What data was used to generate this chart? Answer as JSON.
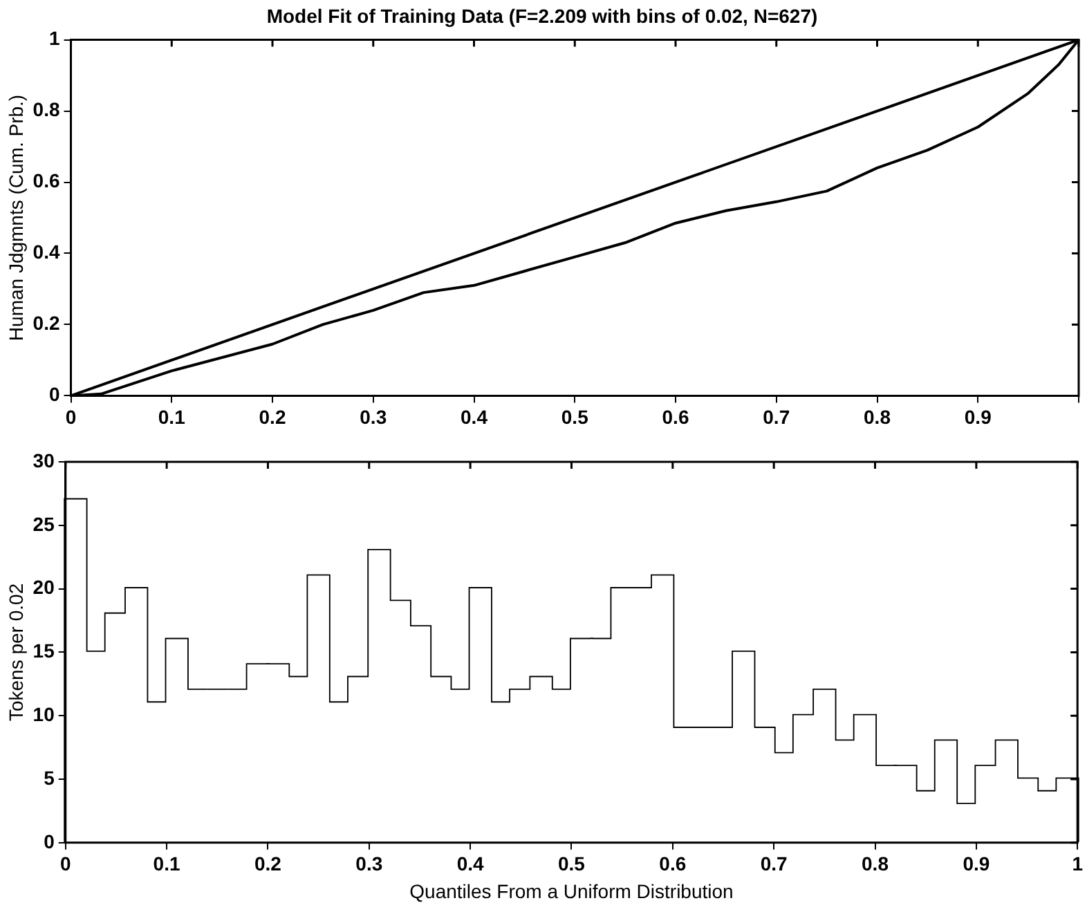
{
  "chart_data": [
    {
      "type": "line",
      "title": "Model Fit of Training Data (F=2.209 with bins of 0.02, N=627)",
      "ylabel": "Human Jdgmnts (Cum. Prb.)",
      "xlim": [
        0,
        1
      ],
      "ylim": [
        0,
        1
      ],
      "xticks": [
        0,
        0.1,
        0.2,
        0.3,
        0.4,
        0.5,
        0.6,
        0.7,
        0.8,
        0.9,
        {
          "value": 1,
          "label": null
        }
      ],
      "yticks": [
        0,
        0.2,
        0.4,
        0.6,
        0.8,
        1
      ],
      "grid": false,
      "legend": false,
      "marker": "none",
      "series": [
        {
          "color": "#000000",
          "x": [
            0,
            1
          ],
          "values": [
            0,
            1
          ]
        },
        {
          "color": "#000000",
          "x": [
            0,
            0.03,
            0.1,
            0.2,
            0.25,
            0.3,
            0.35,
            0.4,
            0.45,
            0.5,
            0.55,
            0.6,
            0.65,
            0.7,
            0.75,
            0.8,
            0.85,
            0.9,
            0.95,
            0.98,
            1
          ],
          "values": [
            0,
            0.005,
            0.07,
            0.145,
            0.2,
            0.24,
            0.29,
            0.31,
            0.35,
            0.39,
            0.43,
            0.485,
            0.52,
            0.545,
            0.575,
            0.64,
            0.69,
            0.755,
            0.85,
            0.93,
            1
          ]
        }
      ]
    },
    {
      "type": "histogram",
      "xlabel": "Quantiles From a Uniform Distribution",
      "ylabel": "Tokens per 0.02",
      "xlim": [
        0,
        1
      ],
      "ylim": [
        0,
        30
      ],
      "xticks": [
        0,
        0.1,
        0.2,
        0.3,
        0.4,
        0.5,
        0.6,
        0.7,
        0.8,
        0.9,
        1
      ],
      "yticks": [
        0,
        5,
        10,
        15,
        20,
        25,
        30
      ],
      "grid": false,
      "legend": false,
      "color": "#ffffff",
      "bins": [
        0,
        0.02,
        0.04,
        0.06,
        0.08,
        0.1,
        0.12,
        0.14,
        0.16,
        0.18,
        0.2,
        0.22,
        0.24,
        0.26,
        0.28,
        0.3,
        0.32,
        0.34,
        0.36,
        0.38,
        0.4,
        0.42,
        0.44,
        0.46,
        0.48,
        0.5,
        0.52,
        0.54,
        0.56,
        0.58,
        0.6,
        0.62,
        0.64,
        0.66,
        0.68,
        0.7,
        0.72,
        0.74,
        0.76,
        0.78,
        0.8,
        0.82,
        0.84,
        0.86,
        0.88,
        0.9,
        0.92,
        0.94,
        0.96,
        0.98,
        1
      ],
      "values": [
        27,
        15,
        18,
        20,
        11,
        16,
        12,
        12,
        12,
        14,
        14,
        13,
        21,
        11,
        13,
        23,
        19,
        17,
        13,
        12,
        20,
        11,
        12,
        13,
        12,
        16,
        16,
        20,
        20,
        21,
        9,
        9,
        9,
        15,
        9,
        7,
        10,
        12,
        8,
        10,
        6,
        6,
        4,
        8,
        3,
        6,
        8,
        5,
        4,
        5
      ]
    }
  ]
}
